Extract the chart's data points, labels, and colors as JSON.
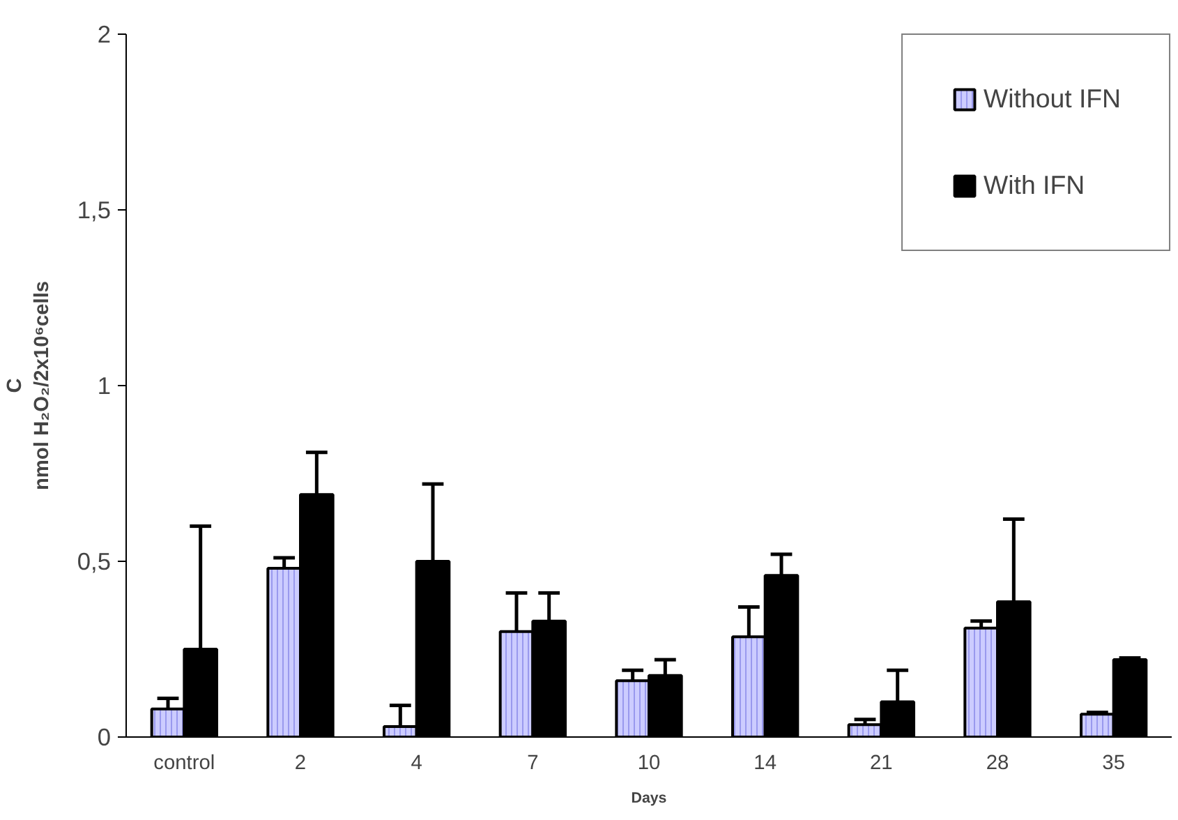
{
  "chart_data": {
    "type": "bar",
    "xlabel": "Days",
    "ylabel": "C\nnmol H₂O₂/2x10⁶cells",
    "categories": [
      "control",
      "2",
      "4",
      "7",
      "10",
      "14",
      "21",
      "28",
      "35"
    ],
    "series": [
      {
        "name": "Without IFN",
        "color": "#ccccff",
        "values": [
          0.08,
          0.48,
          0.03,
          0.3,
          0.16,
          0.285,
          0.035,
          0.31,
          0.065
        ],
        "errors": [
          [
            0.08,
            0.11
          ],
          [
            0.48,
            0.51
          ],
          [
            0.03,
            0.09
          ],
          [
            0.3,
            0.41
          ],
          [
            0.16,
            0.19
          ],
          [
            0.285,
            0.37
          ],
          [
            0.035,
            0.05
          ],
          [
            0.31,
            0.33
          ],
          [
            0.065,
            0.07
          ]
        ]
      },
      {
        "name": "With IFN",
        "color": "#000000",
        "values": [
          0.25,
          0.69,
          0.5,
          0.33,
          0.175,
          0.46,
          0.1,
          0.385,
          0.22
        ],
        "errors": [
          [
            0.25,
            0.6
          ],
          [
            0.69,
            0.81
          ],
          [
            0.5,
            0.72
          ],
          [
            0.33,
            0.41
          ],
          [
            0.175,
            0.22
          ],
          [
            0.46,
            0.52
          ],
          [
            0.1,
            0.19
          ],
          [
            0.385,
            0.62
          ],
          [
            0.22,
            0.225
          ]
        ]
      }
    ],
    "ylim": [
      0,
      2
    ],
    "yticks": [
      0,
      {
        "value": 0.5,
        "label": "0,5"
      },
      1,
      {
        "value": 1.5,
        "label": "1,5"
      },
      2
    ],
    "grid": false,
    "legend": "top right"
  }
}
